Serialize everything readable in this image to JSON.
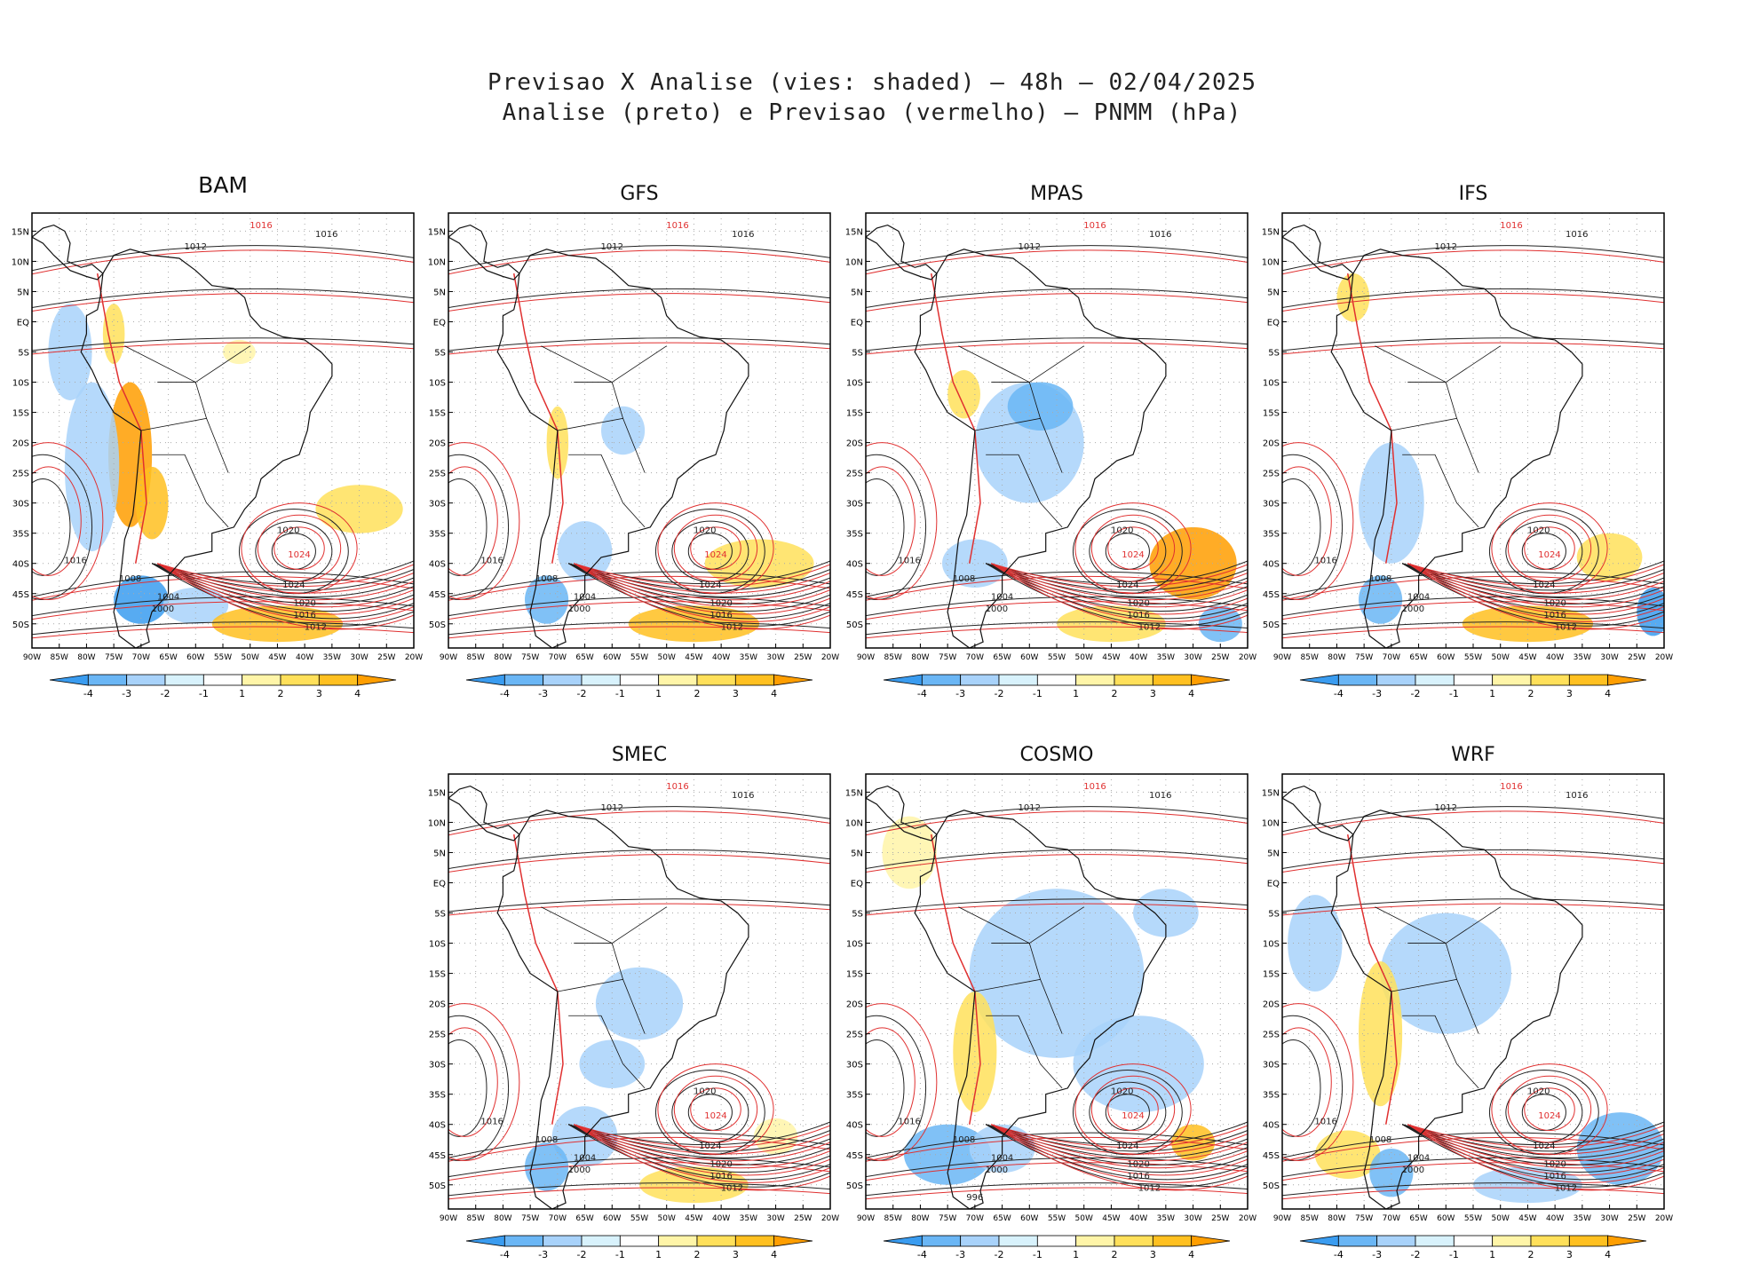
{
  "title": {
    "line1": "Previsao X Analise (vies: shaded) — 48h — 02/04/2025",
    "line2": "Analise (preto) e Previsao (vermelho) — PNMM (hPa)"
  },
  "lat_labels": [
    "15N",
    "10N",
    "5N",
    "EQ",
    "5S",
    "10S",
    "15S",
    "20S",
    "25S",
    "30S",
    "35S",
    "40S",
    "45S",
    "50S"
  ],
  "lon_labels": [
    "90W",
    "85W",
    "80W",
    "75W",
    "70W",
    "65W",
    "60W",
    "55W",
    "50W",
    "45W",
    "40W",
    "35W",
    "30W",
    "25W",
    "20W"
  ],
  "colorbar": {
    "labels": [
      "-4",
      "-3",
      "-2",
      "-1",
      "1",
      "2",
      "3",
      "4"
    ],
    "colors": [
      "#3a9cf0",
      "#6ab6f5",
      "#a8d2fa",
      "#d8f2fc",
      "#ffffff",
      "#fff5a8",
      "#ffe05a",
      "#ffc020",
      "#ff9e00"
    ]
  },
  "panels": [
    {
      "name": "BAM",
      "pos": [
        36,
        240
      ],
      "isobar_labels": [
        "1012",
        "1016",
        "1020",
        "1024",
        "1008",
        "1004",
        "1000"
      ]
    },
    {
      "name": "GFS",
      "pos": [
        505,
        240
      ],
      "isobar_labels": [
        "1012",
        "1016",
        "1020",
        "1024",
        "1008",
        "1004",
        "1000"
      ]
    },
    {
      "name": "MPAS",
      "pos": [
        975,
        240
      ],
      "isobar_labels": [
        "1012",
        "1016",
        "1020",
        "1024",
        "1008",
        "1004",
        "1000"
      ]
    },
    {
      "name": "IFS",
      "pos": [
        1444,
        240
      ],
      "isobar_labels": [
        "1012",
        "1016",
        "1020",
        "1024",
        "1008",
        "1004",
        "1000"
      ]
    },
    {
      "name": "SMEC",
      "pos": [
        505,
        872
      ],
      "isobar_labels": [
        "1012",
        "1016",
        "1020",
        "1024",
        "1008",
        "1004",
        "1000"
      ]
    },
    {
      "name": "COSMO",
      "pos": [
        975,
        872
      ],
      "isobar_labels": [
        "1012",
        "1016",
        "1020",
        "1024",
        "1008",
        "1004",
        "1000",
        "996"
      ]
    },
    {
      "name": "WRF",
      "pos": [
        1444,
        872
      ],
      "isobar_labels": [
        "1012",
        "1016",
        "1020",
        "1024",
        "1008",
        "1004",
        "1000"
      ]
    }
  ]
}
